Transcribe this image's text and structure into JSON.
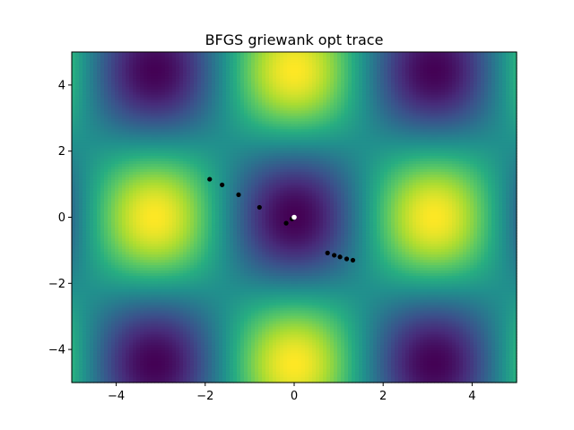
{
  "chart_data": {
    "type": "heatmap",
    "title": "BFGS griewank opt trace",
    "xlabel": "",
    "ylabel": "",
    "xlim": [
      -5,
      5
    ],
    "ylim": [
      -5,
      5
    ],
    "xticks": [
      -4,
      -2,
      0,
      2,
      4
    ],
    "yticks": [
      -4,
      -2,
      0,
      2,
      4
    ],
    "x_tick_labels": [
      "−4",
      "−2",
      "0",
      "2",
      "4"
    ],
    "y_tick_labels": [
      "−4",
      "−2",
      "0",
      "2",
      "4"
    ],
    "colormap": "viridis",
    "grid": false,
    "legend": "none",
    "surface": "griewank",
    "trace_series": [
      {
        "color": "#000000",
        "points": [
          {
            "x": -1.9,
            "y": 1.15
          },
          {
            "x": -1.62,
            "y": 0.98
          },
          {
            "x": -1.25,
            "y": 0.68
          },
          {
            "x": -0.78,
            "y": 0.3
          },
          {
            "x": -0.18,
            "y": -0.18
          },
          {
            "x": -0.05,
            "y": -0.05
          },
          {
            "x": 0.75,
            "y": -1.08
          },
          {
            "x": 0.9,
            "y": -1.15
          },
          {
            "x": 1.03,
            "y": -1.2
          },
          {
            "x": 1.18,
            "y": -1.26
          },
          {
            "x": 1.32,
            "y": -1.3
          }
        ]
      }
    ],
    "optimum": {
      "x": 0.0,
      "y": 0.0,
      "color": "#ffffff"
    }
  }
}
